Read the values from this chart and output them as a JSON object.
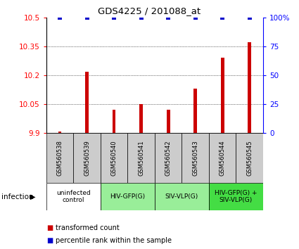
{
  "title": "GDS4225 / 201088_at",
  "samples": [
    "GSM560538",
    "GSM560539",
    "GSM560540",
    "GSM560541",
    "GSM560542",
    "GSM560543",
    "GSM560544",
    "GSM560545"
  ],
  "bar_values": [
    9.91,
    10.22,
    10.02,
    10.05,
    10.02,
    10.13,
    10.29,
    10.37
  ],
  "ylim_left": [
    9.9,
    10.5
  ],
  "ylim_right": [
    0,
    100
  ],
  "yticks_left": [
    9.9,
    10.05,
    10.2,
    10.35,
    10.5
  ],
  "ytick_labels_left": [
    "9.9",
    "10.05",
    "10.2",
    "10.35",
    "10.5"
  ],
  "yticks_right": [
    0,
    25,
    50,
    75,
    100
  ],
  "ytick_labels_right": [
    "0",
    "25",
    "50",
    "75",
    "100%"
  ],
  "bar_color": "#cc0000",
  "percentile_color": "#0000cc",
  "bar_bottom": 9.9,
  "groups": [
    {
      "label": "uninfected\ncontrol",
      "start": 0,
      "end": 2,
      "color": "#ffffff"
    },
    {
      "label": "HIV-GFP(G)",
      "start": 2,
      "end": 4,
      "color": "#99ee99"
    },
    {
      "label": "SIV-VLP(G)",
      "start": 4,
      "end": 6,
      "color": "#99ee99"
    },
    {
      "label": "HIV-GFP(G) +\nSIV-VLP(G)",
      "start": 6,
      "end": 8,
      "color": "#44dd44"
    }
  ],
  "sample_box_color": "#cccccc",
  "legend_bar_label": "transformed count",
  "legend_pct_label": "percentile rank within the sample",
  "infection_label": "infection"
}
